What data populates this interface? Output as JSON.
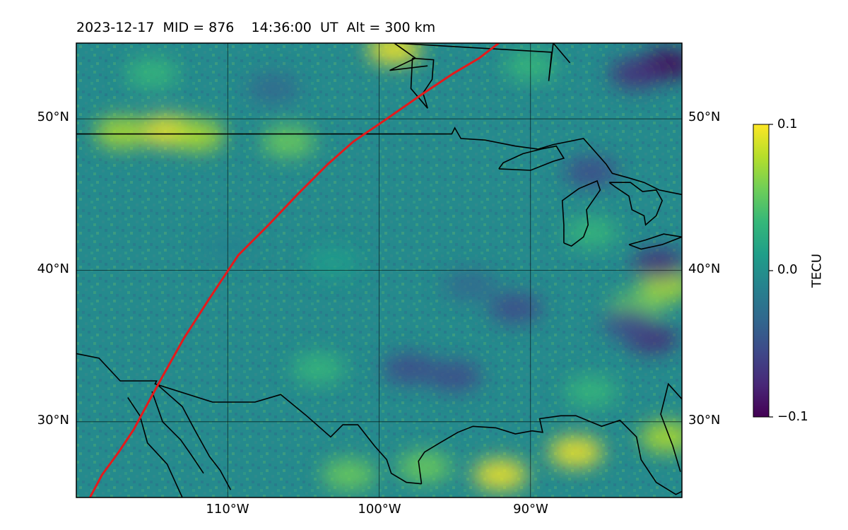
{
  "title": "2023-12-17  MID = 876    14:36:00  UT  Alt = 300 km",
  "map": {
    "extent": {
      "lon_min": -120,
      "lon_max": -80,
      "lat_min": 25,
      "lat_max": 55
    },
    "grid_lons": [
      -110,
      -100,
      -90
    ],
    "grid_lats": [
      30,
      40,
      50
    ],
    "lon_labels": [
      "110°W",
      "100°W",
      "90°W"
    ],
    "lat_labels": [
      "30°N",
      "40°N",
      "50°N"
    ],
    "terminator_color": "#e41a1c",
    "terminator": [
      [
        -119.1,
        25
      ],
      [
        -118.3,
        26.5
      ],
      [
        -117.2,
        28
      ],
      [
        -116.2,
        29.5
      ],
      [
        -115.4,
        31
      ],
      [
        -114.3,
        33
      ],
      [
        -112.9,
        35.5
      ],
      [
        -111.3,
        38
      ],
      [
        -109.3,
        41
      ],
      [
        -107.3,
        43
      ],
      [
        -105.4,
        45
      ],
      [
        -103.4,
        47
      ],
      [
        -101.7,
        48.5
      ],
      [
        -99.5,
        50
      ],
      [
        -97.2,
        51.6
      ],
      [
        -95.1,
        53
      ],
      [
        -93.4,
        54
      ],
      [
        -92.1,
        55
      ]
    ],
    "anomalies": [
      {
        "lon": -114,
        "lat": 49.2,
        "v": 0.09
      },
      {
        "lon": -112,
        "lat": 48.9,
        "v": 0.08
      },
      {
        "lon": -117,
        "lat": 49.1,
        "v": 0.07
      },
      {
        "lon": -106,
        "lat": 48.5,
        "v": 0.06
      },
      {
        "lon": -99,
        "lat": 54.6,
        "v": 0.09
      },
      {
        "lon": -87,
        "lat": 28.0,
        "v": 0.09
      },
      {
        "lon": -92,
        "lat": 26.5,
        "v": 0.1
      },
      {
        "lon": -81,
        "lat": 29.0,
        "v": 0.08
      },
      {
        "lon": -81,
        "lat": 39.0,
        "v": 0.07
      },
      {
        "lon": -83,
        "lat": 37.5,
        "v": 0.05
      },
      {
        "lon": -97,
        "lat": 27.0,
        "v": 0.05
      },
      {
        "lon": -102,
        "lat": 26.5,
        "v": 0.06
      },
      {
        "lon": -104,
        "lat": 33.5,
        "v": 0.04
      },
      {
        "lon": -86,
        "lat": 42.5,
        "v": 0.04
      },
      {
        "lon": -81,
        "lat": 53.6,
        "v": -0.09
      },
      {
        "lon": -83,
        "lat": 53.0,
        "v": -0.07
      },
      {
        "lon": -81.5,
        "lat": 40.4,
        "v": -0.08
      },
      {
        "lon": -82,
        "lat": 35.5,
        "v": -0.07
      },
      {
        "lon": -83.5,
        "lat": 36.5,
        "v": -0.06
      },
      {
        "lon": -98,
        "lat": 33.5,
        "v": -0.06
      },
      {
        "lon": -95,
        "lat": 33.0,
        "v": -0.06
      },
      {
        "lon": -91,
        "lat": 37.5,
        "v": -0.05
      },
      {
        "lon": -94,
        "lat": 39.0,
        "v": -0.04
      },
      {
        "lon": -86,
        "lat": 46.5,
        "v": -0.05
      },
      {
        "lon": -115,
        "lat": 53.0,
        "v": 0.03
      },
      {
        "lon": -107,
        "lat": 52.0,
        "v": -0.03
      },
      {
        "lon": -90,
        "lat": 53.5,
        "v": 0.03
      },
      {
        "lon": -110,
        "lat": 41.5,
        "v": -0.02
      },
      {
        "lon": -103,
        "lat": 40.5,
        "v": 0.02
      },
      {
        "lon": -86,
        "lat": 32.0,
        "v": 0.04
      }
    ]
  },
  "colorbar": {
    "label": "TECU",
    "vmin": -0.1,
    "vmax": 0.1,
    "ticks": [
      0.1,
      0.0,
      -0.1
    ],
    "tick_labels": [
      "0.1",
      "0.0",
      "−0.1"
    ],
    "colors": [
      "#440154",
      "#482878",
      "#3e4989",
      "#31688e",
      "#26828e",
      "#1f9e89",
      "#35b779",
      "#6ece58",
      "#b5de2b",
      "#fde725"
    ]
  },
  "coastlines": [
    [
      [
        -120,
        49
      ],
      [
        -95.2,
        49
      ],
      [
        -95,
        49.4
      ],
      [
        -94.6,
        48.7
      ],
      [
        -93,
        48.6
      ],
      [
        -91,
        48.2
      ],
      [
        -89.5,
        48.0
      ],
      [
        -88.5,
        48.3
      ],
      [
        -86.5,
        48.7
      ],
      [
        -85,
        47.0
      ],
      [
        -84.6,
        46.4
      ],
      [
        -83.5,
        46.1
      ],
      [
        -82.5,
        45.8
      ],
      [
        -81.5,
        45.3
      ],
      [
        -80,
        45
      ]
    ],
    [
      [
        -87.4,
        53.7
      ],
      [
        -88.5,
        55
      ],
      [
        -88.8,
        52.5
      ],
      [
        -88.6,
        54.4
      ],
      [
        -99,
        55
      ],
      [
        -97.6,
        54
      ],
      [
        -99.3,
        53.2
      ],
      [
        -96.8,
        53.5
      ]
    ]
  ],
  "lakes": [
    [
      [
        -92.1,
        46.7
      ],
      [
        -90,
        46.6
      ],
      [
        -88.5,
        47.2
      ],
      [
        -87.8,
        47.4
      ],
      [
        -88.3,
        48.2
      ],
      [
        -89.3,
        48.0
      ],
      [
        -90.5,
        47.7
      ],
      [
        -91.8,
        47.1
      ],
      [
        -92.1,
        46.7
      ]
    ],
    [
      [
        -97.8,
        54.0
      ],
      [
        -96.4,
        53.9
      ],
      [
        -96.5,
        52.6
      ],
      [
        -97.1,
        51.7
      ],
      [
        -96.8,
        50.7
      ],
      [
        -97.9,
        52.0
      ],
      [
        -97.8,
        54.0
      ]
    ],
    [
      [
        -87.8,
        41.8
      ],
      [
        -87.3,
        41.6
      ],
      [
        -86.5,
        42.2
      ],
      [
        -86.2,
        43.0
      ],
      [
        -86.3,
        44.0
      ],
      [
        -85.4,
        45.3
      ],
      [
        -85.6,
        45.9
      ],
      [
        -86.8,
        45.4
      ],
      [
        -87.9,
        44.6
      ],
      [
        -87.8,
        43.0
      ],
      [
        -87.8,
        41.8
      ]
    ],
    [
      [
        -84.8,
        45.8
      ],
      [
        -83.4,
        45.8
      ],
      [
        -82.6,
        45.2
      ],
      [
        -81.7,
        45.3
      ],
      [
        -81.3,
        44.6
      ],
      [
        -81.7,
        43.6
      ],
      [
        -82.4,
        43.0
      ],
      [
        -82.5,
        43.6
      ],
      [
        -83.3,
        44.0
      ],
      [
        -83.5,
        44.9
      ],
      [
        -84.4,
        45.5
      ],
      [
        -84.8,
        45.8
      ]
    ],
    [
      [
        -83.5,
        41.7
      ],
      [
        -82.7,
        41.4
      ],
      [
        -81.3,
        41.7
      ],
      [
        -80,
        42.2
      ],
      [
        -81.2,
        42.4
      ],
      [
        -82.4,
        42.0
      ],
      [
        -83.5,
        41.7
      ]
    ]
  ],
  "borders": [
    [
      [
        -120,
        34.5
      ],
      [
        -118.5,
        34.2
      ],
      [
        -117.1,
        32.7
      ],
      [
        -114.7,
        32.7
      ],
      [
        -114.8,
        32.5
      ],
      [
        -111,
        31.3
      ],
      [
        -108.2,
        31.3
      ],
      [
        -106.5,
        31.8
      ],
      [
        -104.8,
        30.4
      ],
      [
        -103.2,
        29.0
      ],
      [
        -102.4,
        29.8
      ],
      [
        -101.4,
        29.8
      ],
      [
        -100.3,
        28.4
      ],
      [
        -99.5,
        27.5
      ],
      [
        -99.2,
        26.6
      ],
      [
        -98.2,
        26.0
      ],
      [
        -97.2,
        25.9
      ]
    ],
    [
      [
        -114.7,
        32.5
      ],
      [
        -113.0,
        31.0
      ],
      [
        -112.2,
        29.5
      ],
      [
        -111.2,
        27.7
      ],
      [
        -110.5,
        26.8
      ],
      [
        -109.8,
        25.5
      ]
    ],
    [
      [
        -115.0,
        32.0
      ],
      [
        -114.3,
        30.0
      ],
      [
        -113.1,
        28.8
      ],
      [
        -112.4,
        27.8
      ],
      [
        -111.6,
        26.6
      ]
    ],
    [
      [
        -116.6,
        31.6
      ],
      [
        -115.8,
        30.4
      ],
      [
        -115.3,
        28.6
      ],
      [
        -114.0,
        27.2
      ],
      [
        -113.0,
        25.0
      ]
    ],
    [
      [
        -97.2,
        25.9
      ],
      [
        -97.4,
        27.4
      ],
      [
        -97.0,
        28.0
      ],
      [
        -96.0,
        28.6
      ],
      [
        -94.8,
        29.3
      ],
      [
        -93.8,
        29.7
      ],
      [
        -92.3,
        29.6
      ],
      [
        -91.0,
        29.2
      ],
      [
        -89.9,
        29.4
      ],
      [
        -89.2,
        29.3
      ],
      [
        -89.4,
        30.2
      ],
      [
        -88.0,
        30.4
      ],
      [
        -87.0,
        30.4
      ],
      [
        -85.3,
        29.7
      ],
      [
        -84.1,
        30.1
      ],
      [
        -83.0,
        29.0
      ],
      [
        -82.7,
        27.5
      ],
      [
        -81.7,
        26.0
      ],
      [
        -80.4,
        25.2
      ],
      [
        -80,
        25.4
      ]
    ],
    [
      [
        -80,
        31.5
      ],
      [
        -80.9,
        32.5
      ],
      [
        -81.4,
        30.5
      ],
      [
        -80.6,
        28.4
      ],
      [
        -80.1,
        26.7
      ]
    ]
  ]
}
